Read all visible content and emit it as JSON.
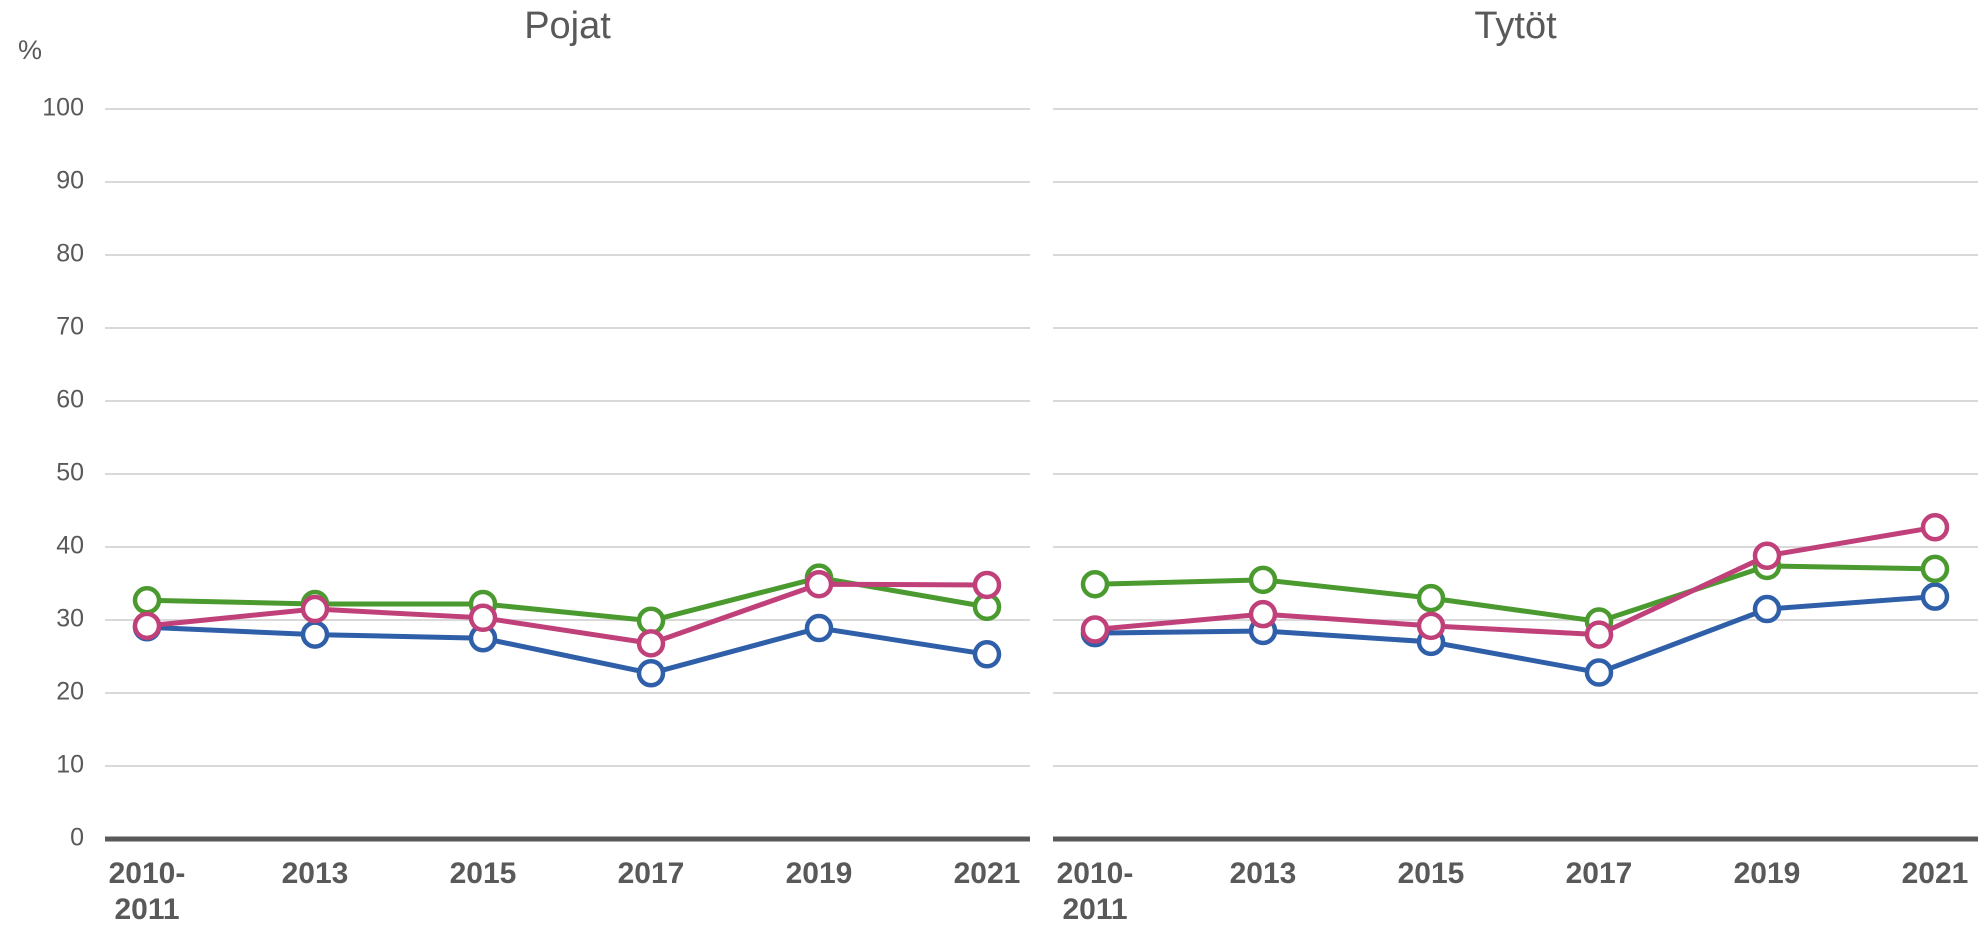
{
  "chart_data": [
    {
      "type": "line",
      "title": "Pojat",
      "y_label": "%",
      "categories": [
        "2010-\n2011",
        "2013",
        "2015",
        "2017",
        "2019",
        "2021"
      ],
      "series": [
        {
          "color": "#2f5fa8",
          "values": [
            29.0,
            28.0,
            27.5,
            22.7,
            28.9,
            25.3
          ]
        },
        {
          "color": "#4a9a2f",
          "values": [
            32.7,
            32.2,
            32.2,
            29.9,
            35.8,
            31.8
          ]
        },
        {
          "color": "#c0407a",
          "values": [
            29.2,
            31.5,
            30.3,
            26.8,
            34.9,
            34.8
          ]
        }
      ],
      "ylim": [
        0,
        100
      ],
      "yticks": [
        0,
        10,
        20,
        30,
        40,
        50,
        60,
        70,
        80,
        90,
        100
      ],
      "grid": true
    },
    {
      "type": "line",
      "title": "Tytöt",
      "categories": [
        "2010-\n2011",
        "2013",
        "2015",
        "2017",
        "2019",
        "2021"
      ],
      "series": [
        {
          "color": "#2f5fa8",
          "values": [
            28.2,
            28.5,
            27.0,
            22.8,
            31.5,
            33.2
          ]
        },
        {
          "color": "#4a9a2f",
          "values": [
            34.9,
            35.5,
            33.0,
            29.8,
            37.4,
            37.0
          ]
        },
        {
          "color": "#c0407a",
          "values": [
            28.7,
            30.8,
            29.2,
            28.0,
            38.8,
            42.7
          ]
        }
      ],
      "ylim": [
        0,
        100
      ],
      "yticks": [
        0,
        10,
        20,
        30,
        40,
        50,
        60,
        70,
        80,
        90,
        100
      ],
      "grid": true
    }
  ]
}
